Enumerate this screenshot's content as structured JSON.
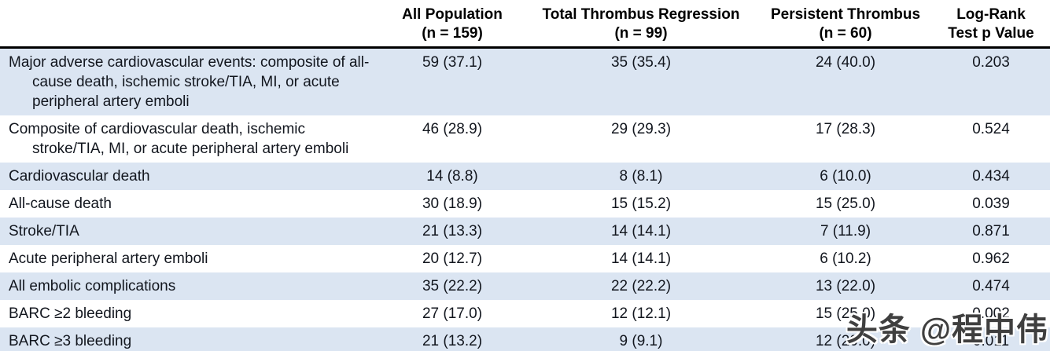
{
  "table": {
    "columns": [
      {
        "line1": "All Population",
        "line2": "(n = 159)"
      },
      {
        "line1": "Total Thrombus Regression",
        "line2": "(n = 99)"
      },
      {
        "line1": "Persistent Thrombus",
        "line2": "(n = 60)"
      },
      {
        "line1": "Log-Rank",
        "line2": "Test p Value"
      }
    ],
    "rows": [
      {
        "label": "Major adverse cardiovascular events: composite of all-cause death, ischemic stroke/TIA, MI, or acute peripheral artery emboli",
        "all_population": "59 (37.1)",
        "total_regression": "35 (35.4)",
        "persistent": "24 (40.0)",
        "p_value": "0.203"
      },
      {
        "label": "Composite of cardiovascular death, ischemic stroke/TIA, MI, or acute peripheral artery emboli",
        "all_population": "46 (28.9)",
        "total_regression": "29 (29.3)",
        "persistent": "17 (28.3)",
        "p_value": "0.524"
      },
      {
        "label": "Cardiovascular death",
        "all_population": "14 (8.8)",
        "total_regression": "8 (8.1)",
        "persistent": "6 (10.0)",
        "p_value": "0.434"
      },
      {
        "label": "All-cause death",
        "all_population": "30 (18.9)",
        "total_regression": "15 (15.2)",
        "persistent": "15 (25.0)",
        "p_value": "0.039"
      },
      {
        "label": "Stroke/TIA",
        "all_population": "21 (13.3)",
        "total_regression": "14 (14.1)",
        "persistent": "7 (11.9)",
        "p_value": "0.871"
      },
      {
        "label": "Acute peripheral artery emboli",
        "all_population": "20 (12.7)",
        "total_regression": "14 (14.1)",
        "persistent": "6 (10.2)",
        "p_value": "0.962"
      },
      {
        "label": "All embolic complications",
        "all_population": "35 (22.2)",
        "total_regression": "22 (22.2)",
        "persistent": "13 (22.0)",
        "p_value": "0.474"
      },
      {
        "label": "BARC ≥2 bleeding",
        "all_population": "27 (17.0)",
        "total_regression": "12 (12.1)",
        "persistent": "15 (25.0)",
        "p_value": "0.002"
      },
      {
        "label": "BARC ≥3 bleeding",
        "all_population": "21 (13.2)",
        "total_regression": "9 (9.1)",
        "persistent": "12 (20.0)",
        "p_value": "0.011"
      }
    ]
  },
  "watermark": {
    "text": "头条 @程中伟"
  },
  "colors": {
    "row_alt": "#dbe5f2",
    "row_base": "#ffffff",
    "text": "#12161e",
    "header_rule": "#000000",
    "watermark_text": "#3f3f3f"
  }
}
